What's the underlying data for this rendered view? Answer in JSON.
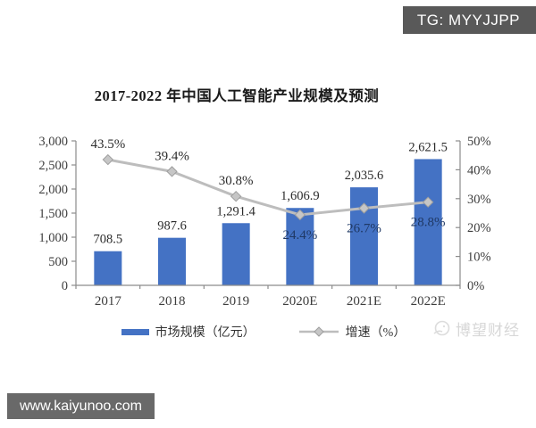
{
  "header_badge": {
    "label": "TG: MYYJJPP",
    "bg": "#595959",
    "text_color": "#ffffff"
  },
  "footer_badge": {
    "label": "www.kaiyunoo.com",
    "bg": "#696969",
    "text_color": "#ffffff"
  },
  "watermark": {
    "label": "博望财经"
  },
  "chart_data": {
    "type": "bar",
    "combo": "bar+line",
    "title": "2017-2022 年中国人工智能产业规模及预测",
    "categories": [
      "2017",
      "2018",
      "2019",
      "2020E",
      "2021E",
      "2022E"
    ],
    "series": [
      {
        "name": "市场规模（亿元）",
        "type": "bar",
        "axis": "left",
        "color": "#4472C4",
        "values": [
          708.5,
          987.6,
          1291.4,
          1606.9,
          2035.6,
          2621.5
        ],
        "labels": [
          "708.5",
          "987.6",
          "1,291.4",
          "1,606.9",
          "2,035.6",
          "2,621.5"
        ],
        "label_color": "#2b2b2b"
      },
      {
        "name": "增速（%）",
        "type": "line",
        "axis": "right",
        "color": "#bdbdbd",
        "marker": "diamond",
        "marker_fill": "#c6c6c6",
        "marker_stroke": "#9e9e9e",
        "values": [
          43.5,
          39.4,
          30.8,
          24.4,
          26.7,
          28.8
        ],
        "labels": [
          "43.5%",
          "39.4%",
          "30.8%",
          "24.4%",
          "26.7%",
          "28.8%"
        ],
        "label_positions": [
          "above",
          "above",
          "above",
          "below",
          "below",
          "below"
        ],
        "label_colors": [
          "#2b2b2b",
          "#2b2b2b",
          "#2b2b2b",
          "#1f3864",
          "#1f3864",
          "#1f3864"
        ]
      }
    ],
    "left_axis": {
      "min": 0,
      "max": 3000,
      "tick_labels": [
        "0",
        "500",
        "1,000",
        "1,500",
        "2,000",
        "2,500",
        "3,000"
      ]
    },
    "right_axis": {
      "min": 0,
      "max": 50,
      "tick_labels": [
        "0%",
        "10%",
        "20%",
        "30%",
        "40%",
        "50%"
      ]
    },
    "axis_color": "#8c8c8c",
    "tick_text_color": "#3d3d3d",
    "grid": false,
    "legend_position": "bottom-center"
  }
}
